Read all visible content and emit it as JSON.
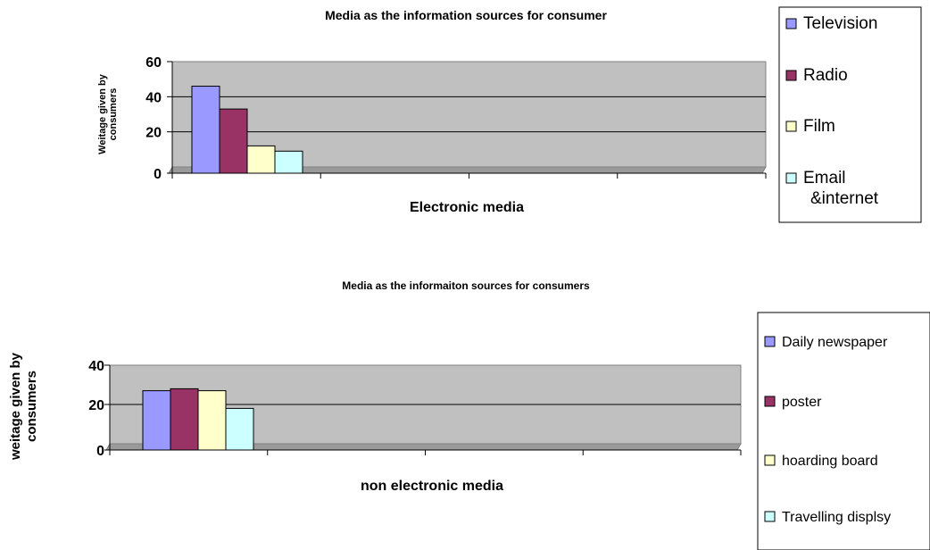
{
  "chart_data": [
    {
      "type": "bar",
      "title": "Media as the information sources for consumer",
      "xlabel": "Electronic media",
      "ylabel": "Weitage given by consumers",
      "ylim": [
        0,
        60
      ],
      "yticks": [
        0,
        20,
        40,
        60
      ],
      "grid": true,
      "legend_position": "right",
      "series": [
        {
          "name": "Television",
          "values": [
            46
          ],
          "color": "#9999FF"
        },
        {
          "name": "Radio",
          "values": [
            33
          ],
          "color": "#993366"
        },
        {
          "name": "Film",
          "values": [
            12
          ],
          "color": "#FFFFCC"
        },
        {
          "name": "Email &internet",
          "values": [
            9
          ],
          "color": "#CCFFFF"
        }
      ]
    },
    {
      "type": "bar",
      "title": "Media as the informaiton sources for consumers",
      "xlabel": "non electronic media",
      "ylabel": "weitage given by consumers",
      "ylim": [
        0,
        40
      ],
      "yticks": [
        0,
        20,
        40
      ],
      "grid": true,
      "legend_position": "right",
      "series": [
        {
          "name": "Daily newspaper",
          "values": [
            27
          ],
          "color": "#9999FF"
        },
        {
          "name": "poster",
          "values": [
            28
          ],
          "color": "#993366"
        },
        {
          "name": "hoarding board",
          "values": [
            27
          ],
          "color": "#FFFFCC"
        },
        {
          "name": "Travelling displsy",
          "values": [
            18
          ],
          "color": "#CCFFFF"
        }
      ]
    }
  ]
}
